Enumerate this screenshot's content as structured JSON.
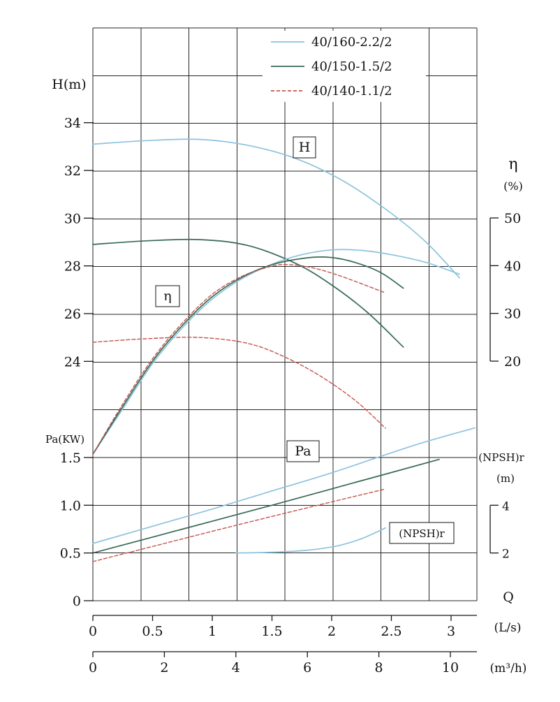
{
  "chart_data": {
    "type": "line",
    "title": "",
    "description": "Centrifugal pump performance curves: H-Q, eta-Q, Pa-Q and (NPSH)r-Q for three pump models",
    "q_unit": "L/s",
    "colors": {
      "blue": "#8cc3dd",
      "green": "#386955",
      "red": "#c4544c"
    },
    "legend": [
      {
        "label": "40/160-2.2/2",
        "color_key": "blue",
        "line_style": "solid"
      },
      {
        "label": "40/150-1.5/2",
        "color_key": "green",
        "line_style": "solid"
      },
      {
        "label": "40/140-1.1/2",
        "color_key": "red",
        "line_style": "dashed"
      }
    ],
    "axes": {
      "y_H": {
        "label": "H(m)",
        "ticks": [
          34,
          32,
          30,
          28,
          26,
          24
        ],
        "tick_labels": [
          "34",
          "32",
          "30",
          "28",
          "26",
          "24"
        ]
      },
      "y_Pa": {
        "label": "Pa(KW)",
        "ticks": [
          1.5,
          1.0,
          0.5,
          0
        ],
        "tick_labels": [
          "1.5",
          "1.0",
          "0.5",
          "0"
        ]
      },
      "y_eta": {
        "label": "η",
        "unit": "(%)",
        "ticks": [
          50,
          40,
          30,
          20
        ],
        "tick_labels": [
          "50",
          "40",
          "30",
          "20"
        ]
      },
      "y_npsh": {
        "label": "(NPSH)r",
        "unit": "(m)",
        "ticks": [
          4,
          2
        ],
        "tick_labels": [
          "4",
          "2"
        ]
      },
      "x_lps": {
        "label": "Q",
        "unit": "(L/s)",
        "ticks": [
          0,
          0.5,
          1,
          1.5,
          2,
          2.5,
          3
        ],
        "tick_labels": [
          "0",
          "0.5",
          "1",
          "1.5",
          "2",
          "2.5",
          "3"
        ]
      },
      "x_m3h": {
        "unit": "(m³/h)",
        "ticks": [
          0,
          2,
          4,
          6,
          8,
          10
        ],
        "tick_labels": [
          "0",
          "2",
          "4",
          "6",
          "8",
          "10"
        ]
      }
    },
    "curve_labels": [
      {
        "text": "H",
        "x": 436,
        "y": 211,
        "w": 32,
        "fs": 19
      },
      {
        "text": "η",
        "x": 240,
        "y": 424,
        "w": 34,
        "fs": 19
      },
      {
        "text": "Pa",
        "x": 434,
        "y": 646,
        "w": 46,
        "fs": 19
      },
      {
        "text": "(NPSH)r",
        "x": 604,
        "y": 763,
        "w": 92,
        "fs": 15
      }
    ],
    "series": [
      {
        "pump": "40/160-2.2/2",
        "quantity": "H",
        "unit": "m",
        "color_key": "blue",
        "style": "solid",
        "points": [
          [
            0,
            33.1
          ],
          [
            0.45,
            33.25
          ],
          [
            0.9,
            33.3
          ],
          [
            1.3,
            33.05
          ],
          [
            1.7,
            32.5
          ],
          [
            2.1,
            31.55
          ],
          [
            2.5,
            30.2
          ],
          [
            2.8,
            28.95
          ],
          [
            3.07,
            27.5
          ]
        ]
      },
      {
        "pump": "40/150-1.5/2",
        "quantity": "H",
        "unit": "m",
        "color_key": "green",
        "style": "solid",
        "points": [
          [
            0,
            28.9
          ],
          [
            0.45,
            29.05
          ],
          [
            0.9,
            29.1
          ],
          [
            1.3,
            28.85
          ],
          [
            1.7,
            28.1
          ],
          [
            2.0,
            27.2
          ],
          [
            2.3,
            26.05
          ],
          [
            2.6,
            24.6
          ]
        ]
      },
      {
        "pump": "40/140-1.1/2",
        "quantity": "H",
        "unit": "m",
        "color_key": "red",
        "style": "dashed",
        "points": [
          [
            0,
            24.8
          ],
          [
            0.45,
            24.95
          ],
          [
            0.9,
            25.0
          ],
          [
            1.3,
            24.75
          ],
          [
            1.6,
            24.2
          ],
          [
            1.9,
            23.4
          ],
          [
            2.2,
            22.35
          ],
          [
            2.45,
            21.2
          ]
        ]
      },
      {
        "pump": "40/160-2.2/2",
        "quantity": "eta",
        "unit": "%",
        "color_key": "blue",
        "style": "solid",
        "points": [
          [
            0,
            0.5
          ],
          [
            0.25,
            10
          ],
          [
            0.5,
            19.5
          ],
          [
            0.75,
            27
          ],
          [
            1.0,
            33
          ],
          [
            1.25,
            37.3
          ],
          [
            1.5,
            40.3
          ],
          [
            1.75,
            42.3
          ],
          [
            2.0,
            43.3
          ],
          [
            2.25,
            43.2
          ],
          [
            2.5,
            42.3
          ],
          [
            2.8,
            40.6
          ],
          [
            3.07,
            38.2
          ]
        ]
      },
      {
        "pump": "40/150-1.5/2",
        "quantity": "eta",
        "unit": "%",
        "color_key": "green",
        "style": "solid",
        "points": [
          [
            0,
            0.5
          ],
          [
            0.25,
            10.5
          ],
          [
            0.5,
            20
          ],
          [
            0.75,
            27.5
          ],
          [
            1.0,
            33.5
          ],
          [
            1.25,
            37.6
          ],
          [
            1.5,
            40.2
          ],
          [
            1.75,
            41.5
          ],
          [
            1.95,
            41.8
          ],
          [
            2.15,
            41.0
          ],
          [
            2.4,
            38.7
          ],
          [
            2.6,
            35.3
          ]
        ]
      },
      {
        "pump": "40/140-1.1/2",
        "quantity": "eta",
        "unit": "%",
        "color_key": "red",
        "style": "dashed",
        "points": [
          [
            0,
            0.5
          ],
          [
            0.25,
            11
          ],
          [
            0.5,
            20.5
          ],
          [
            0.75,
            28
          ],
          [
            1.0,
            34
          ],
          [
            1.25,
            37.8
          ],
          [
            1.5,
            39.9
          ],
          [
            1.65,
            40.2
          ],
          [
            1.85,
            39.5
          ],
          [
            2.1,
            37.6
          ],
          [
            2.45,
            34.3
          ]
        ]
      },
      {
        "pump": "40/160-2.2/2",
        "quantity": "Pa",
        "unit": "KW",
        "color_key": "blue",
        "style": "solid",
        "points": [
          [
            0,
            0.6
          ],
          [
            0.5,
            0.78
          ],
          [
            1.0,
            0.96
          ],
          [
            1.5,
            1.15
          ],
          [
            2.0,
            1.34
          ],
          [
            2.5,
            1.55
          ],
          [
            2.8,
            1.67
          ],
          [
            3.2,
            1.81
          ]
        ]
      },
      {
        "pump": "40/150-1.5/2",
        "quantity": "Pa",
        "unit": "KW",
        "color_key": "green",
        "style": "solid",
        "points": [
          [
            0,
            0.5
          ],
          [
            0.75,
            0.75
          ],
          [
            1.5,
            1.0
          ],
          [
            2.2,
            1.24
          ],
          [
            2.9,
            1.48
          ]
        ]
      },
      {
        "pump": "40/140-1.1/2",
        "quantity": "Pa",
        "unit": "KW",
        "color_key": "red",
        "style": "dashed",
        "points": [
          [
            0,
            0.41
          ],
          [
            0.6,
            0.6
          ],
          [
            1.2,
            0.79
          ],
          [
            1.85,
            0.99
          ],
          [
            2.45,
            1.17
          ]
        ]
      },
      {
        "pump": "40/160-2.2/2",
        "quantity": "NPSHr",
        "unit": "m",
        "color_key": "blue",
        "style": "solid",
        "points": [
          [
            1.2,
            2.0
          ],
          [
            1.5,
            2.03
          ],
          [
            1.8,
            2.12
          ],
          [
            2.05,
            2.3
          ],
          [
            2.25,
            2.6
          ],
          [
            2.45,
            3.05
          ]
        ]
      }
    ]
  }
}
